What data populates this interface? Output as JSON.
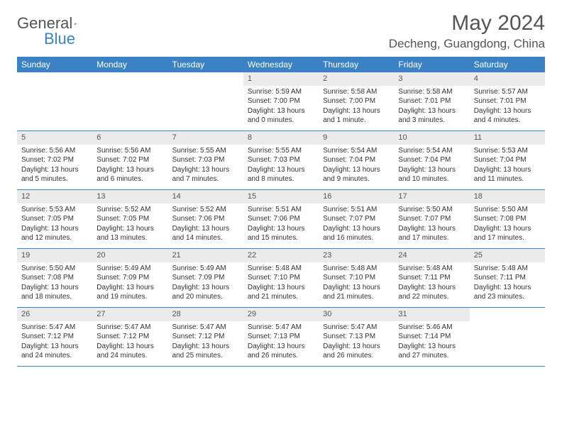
{
  "brand": {
    "name1": "General",
    "name2": "Blue"
  },
  "title": "May 2024",
  "location": "Decheng, Guangdong, China",
  "colors": {
    "header_bg": "#3b82c4",
    "logo_blue": "#3b82c4",
    "text_gray": "#555555",
    "daynum_bg": "#ebebeb",
    "border": "#3b82c4",
    "white": "#ffffff"
  },
  "weekdays": [
    "Sunday",
    "Monday",
    "Tuesday",
    "Wednesday",
    "Thursday",
    "Friday",
    "Saturday"
  ],
  "weeks": [
    [
      null,
      null,
      null,
      {
        "n": "1",
        "sr": "5:59 AM",
        "ss": "7:00 PM",
        "dl": "13 hours and 0 minutes."
      },
      {
        "n": "2",
        "sr": "5:58 AM",
        "ss": "7:00 PM",
        "dl": "13 hours and 1 minute."
      },
      {
        "n": "3",
        "sr": "5:58 AM",
        "ss": "7:01 PM",
        "dl": "13 hours and 3 minutes."
      },
      {
        "n": "4",
        "sr": "5:57 AM",
        "ss": "7:01 PM",
        "dl": "13 hours and 4 minutes."
      }
    ],
    [
      {
        "n": "5",
        "sr": "5:56 AM",
        "ss": "7:02 PM",
        "dl": "13 hours and 5 minutes."
      },
      {
        "n": "6",
        "sr": "5:56 AM",
        "ss": "7:02 PM",
        "dl": "13 hours and 6 minutes."
      },
      {
        "n": "7",
        "sr": "5:55 AM",
        "ss": "7:03 PM",
        "dl": "13 hours and 7 minutes."
      },
      {
        "n": "8",
        "sr": "5:55 AM",
        "ss": "7:03 PM",
        "dl": "13 hours and 8 minutes."
      },
      {
        "n": "9",
        "sr": "5:54 AM",
        "ss": "7:04 PM",
        "dl": "13 hours and 9 minutes."
      },
      {
        "n": "10",
        "sr": "5:54 AM",
        "ss": "7:04 PM",
        "dl": "13 hours and 10 minutes."
      },
      {
        "n": "11",
        "sr": "5:53 AM",
        "ss": "7:04 PM",
        "dl": "13 hours and 11 minutes."
      }
    ],
    [
      {
        "n": "12",
        "sr": "5:53 AM",
        "ss": "7:05 PM",
        "dl": "13 hours and 12 minutes."
      },
      {
        "n": "13",
        "sr": "5:52 AM",
        "ss": "7:05 PM",
        "dl": "13 hours and 13 minutes."
      },
      {
        "n": "14",
        "sr": "5:52 AM",
        "ss": "7:06 PM",
        "dl": "13 hours and 14 minutes."
      },
      {
        "n": "15",
        "sr": "5:51 AM",
        "ss": "7:06 PM",
        "dl": "13 hours and 15 minutes."
      },
      {
        "n": "16",
        "sr": "5:51 AM",
        "ss": "7:07 PM",
        "dl": "13 hours and 16 minutes."
      },
      {
        "n": "17",
        "sr": "5:50 AM",
        "ss": "7:07 PM",
        "dl": "13 hours and 17 minutes."
      },
      {
        "n": "18",
        "sr": "5:50 AM",
        "ss": "7:08 PM",
        "dl": "13 hours and 17 minutes."
      }
    ],
    [
      {
        "n": "19",
        "sr": "5:50 AM",
        "ss": "7:08 PM",
        "dl": "13 hours and 18 minutes."
      },
      {
        "n": "20",
        "sr": "5:49 AM",
        "ss": "7:09 PM",
        "dl": "13 hours and 19 minutes."
      },
      {
        "n": "21",
        "sr": "5:49 AM",
        "ss": "7:09 PM",
        "dl": "13 hours and 20 minutes."
      },
      {
        "n": "22",
        "sr": "5:48 AM",
        "ss": "7:10 PM",
        "dl": "13 hours and 21 minutes."
      },
      {
        "n": "23",
        "sr": "5:48 AM",
        "ss": "7:10 PM",
        "dl": "13 hours and 21 minutes."
      },
      {
        "n": "24",
        "sr": "5:48 AM",
        "ss": "7:11 PM",
        "dl": "13 hours and 22 minutes."
      },
      {
        "n": "25",
        "sr": "5:48 AM",
        "ss": "7:11 PM",
        "dl": "13 hours and 23 minutes."
      }
    ],
    [
      {
        "n": "26",
        "sr": "5:47 AM",
        "ss": "7:12 PM",
        "dl": "13 hours and 24 minutes."
      },
      {
        "n": "27",
        "sr": "5:47 AM",
        "ss": "7:12 PM",
        "dl": "13 hours and 24 minutes."
      },
      {
        "n": "28",
        "sr": "5:47 AM",
        "ss": "7:12 PM",
        "dl": "13 hours and 25 minutes."
      },
      {
        "n": "29",
        "sr": "5:47 AM",
        "ss": "7:13 PM",
        "dl": "13 hours and 26 minutes."
      },
      {
        "n": "30",
        "sr": "5:47 AM",
        "ss": "7:13 PM",
        "dl": "13 hours and 26 minutes."
      },
      {
        "n": "31",
        "sr": "5:46 AM",
        "ss": "7:14 PM",
        "dl": "13 hours and 27 minutes."
      },
      null
    ]
  ],
  "labels": {
    "sunrise": "Sunrise:",
    "sunset": "Sunset:",
    "daylight": "Daylight:"
  }
}
